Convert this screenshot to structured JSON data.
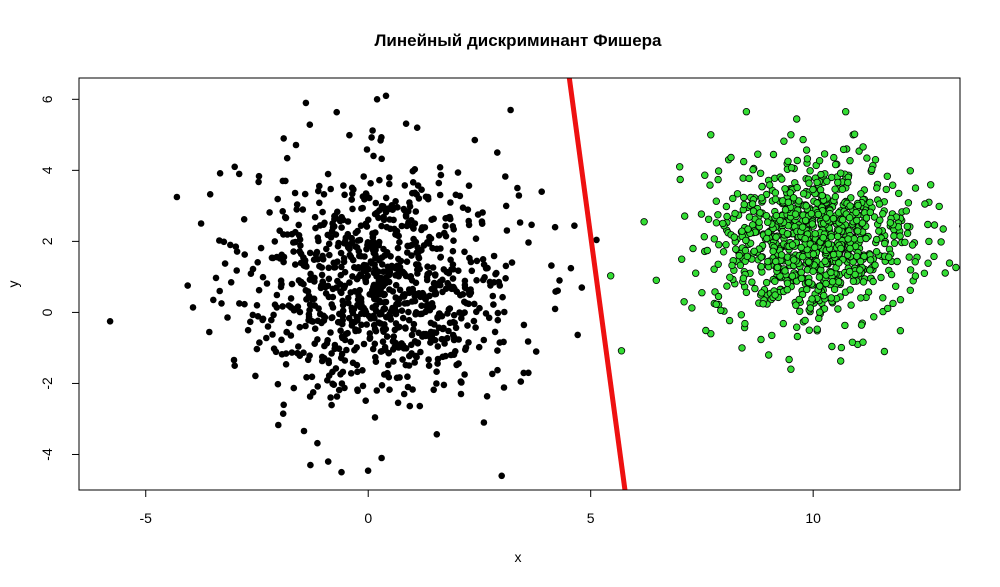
{
  "chart_data": {
    "type": "scatter",
    "title": "Линейный дискриминант Фишера",
    "xlabel": "x",
    "ylabel": "y",
    "xlim": [
      -6.5,
      13.3
    ],
    "ylim": [
      -5.0,
      6.6
    ],
    "x_ticks": [
      -5,
      0,
      5,
      10
    ],
    "y_ticks": [
      -4,
      -2,
      0,
      2,
      4,
      6
    ],
    "x_tick_labels": [
      "-5",
      "0",
      "5",
      "10"
    ],
    "y_tick_labels": [
      "-4",
      "-2",
      "0",
      "2",
      "4",
      "6"
    ],
    "grid": false,
    "legend": "none",
    "colors": {
      "class_1_fill": "#000000",
      "class_2_fill": "#33dd33",
      "class_2_edge": "#000000",
      "discriminant_line": "#ee1111"
    },
    "series": [
      {
        "center": [
          0.3,
          0.8
        ],
        "sd": [
          1.5,
          1.6
        ],
        "count": 1000,
        "points_sample": [
          [
            -5.8,
            -0.25
          ],
          [
            -4.3,
            3.25
          ],
          [
            0.2,
            6.0
          ],
          [
            0.4,
            6.1
          ],
          [
            -1.4,
            5.9
          ],
          [
            3.2,
            5.7
          ],
          [
            -1.9,
            4.9
          ],
          [
            1.1,
            5.2
          ],
          [
            -3.0,
            4.1
          ],
          [
            -2.9,
            3.9
          ],
          [
            -3.1,
            1.9
          ],
          [
            -2.5,
            0.2
          ],
          [
            -3.0,
            -1.5
          ],
          [
            -1.3,
            -4.3
          ],
          [
            -0.9,
            -4.2
          ],
          [
            -0.6,
            -4.5
          ],
          [
            0.3,
            -4.1
          ],
          [
            3.0,
            -4.6
          ],
          [
            3.6,
            -1.7
          ],
          [
            4.2,
            0.1
          ],
          [
            4.3,
            0.9
          ],
          [
            4.8,
            0.7
          ],
          [
            3.9,
            3.4
          ],
          [
            2.9,
            4.5
          ],
          [
            4.2,
            2.4
          ],
          [
            3.1,
            3.0
          ],
          [
            -2.1,
            2.0
          ],
          [
            -2.7,
            -0.5
          ],
          [
            -1.9,
            -2.6
          ],
          [
            2.6,
            -3.1
          ]
        ]
      },
      {
        "center": [
          10.0,
          2.0
        ],
        "sd": [
          1.1,
          1.1
        ],
        "count": 1000,
        "points_sample": [
          [
            6.2,
            2.55
          ],
          [
            7.0,
            4.1
          ],
          [
            7.7,
            5.0
          ],
          [
            8.5,
            5.65
          ],
          [
            9.5,
            5.0
          ],
          [
            10.9,
            5.0
          ],
          [
            7.1,
            0.3
          ],
          [
            7.3,
            1.8
          ],
          [
            7.7,
            -0.6
          ],
          [
            8.4,
            -1.0
          ],
          [
            9.0,
            -1.2
          ],
          [
            9.5,
            -1.6
          ],
          [
            11.0,
            -0.9
          ],
          [
            11.6,
            -1.1
          ],
          [
            12.5,
            1.1
          ],
          [
            12.6,
            3.1
          ],
          [
            12.3,
            3.5
          ],
          [
            12.6,
            2.0
          ],
          [
            11.4,
            4.3
          ],
          [
            8.1,
            4.3
          ]
        ]
      }
    ],
    "discriminant_line": {
      "points": [
        [
          4.52,
          6.6
        ],
        [
          5.77,
          -5.0
        ]
      ]
    }
  }
}
